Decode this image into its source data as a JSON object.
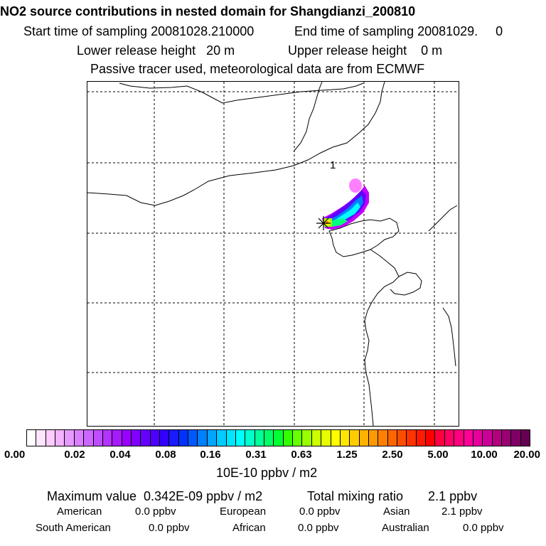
{
  "header": {
    "title": "NO2 source contributions in nested domain for Shangdianzi_200810",
    "start_label": "Start time of sampling 20081028.210000",
    "end_label": "End time of sampling 20081029.     0",
    "lower_release": "Lower release height   20 m",
    "upper_release": "Upper release height    0 m",
    "tracer_note": "Passive tracer used, meteorological data are from ECMWF"
  },
  "map": {
    "receptor_label": "1",
    "plume_colors": [
      "#ff80ff",
      "#c000ff",
      "#6000ff",
      "#0080ff",
      "#00ffff",
      "#00ff80",
      "#a0ff00",
      "#ffff00",
      "#ff8000"
    ]
  },
  "legend": {
    "colors": [
      "#ffffff",
      "#ffe6ff",
      "#ffccff",
      "#f2b3ff",
      "#e699ff",
      "#d97fff",
      "#cc66ff",
      "#bf4dff",
      "#b333ff",
      "#a61aff",
      "#9900ff",
      "#8000ff",
      "#6600ff",
      "#4d00ff",
      "#3300ff",
      "#1a1aff",
      "#0033ff",
      "#0059ff",
      "#0080ff",
      "#00a6ff",
      "#00ccff",
      "#00e6ff",
      "#00ffff",
      "#00ffcc",
      "#00ff99",
      "#00ff66",
      "#00ff33",
      "#33ff00",
      "#66ff00",
      "#99ff00",
      "#ccff00",
      "#e6ff00",
      "#ffff00",
      "#ffe600",
      "#ffcc00",
      "#ffb300",
      "#ff9900",
      "#ff8000",
      "#ff6600",
      "#ff4d00",
      "#ff3300",
      "#ff1a00",
      "#ff0000",
      "#ff0040",
      "#ff0066",
      "#ff0080",
      "#ff0099",
      "#e6009e",
      "#cc0099",
      "#b30080",
      "#990073",
      "#800066",
      "#660052"
    ],
    "ticks": [
      "0.00",
      "0.02",
      "0.04",
      "0.08",
      "0.16",
      "0.31",
      "0.63",
      "1.25",
      "2.50",
      "5.00",
      "10.00",
      "20.00"
    ],
    "unit": "10E-10 ppbv / m2"
  },
  "summary": {
    "max_value": "Maximum value  0.342E-09 ppbv / m2",
    "total_mixing": "Total mixing ratio       2.1 ppbv",
    "american_label": "American",
    "american_value": "0.0 ppbv",
    "european_label": "European",
    "european_value": "0.0 ppbv",
    "asian_label": "Asian",
    "asian_value": "2.1 ppbv",
    "south_american_label": "South American",
    "south_american_value": "0.0 ppbv",
    "african_label": "African",
    "african_value": "0.0 ppbv",
    "australian_label": "Australian",
    "australian_value": "0.0 ppbv"
  }
}
